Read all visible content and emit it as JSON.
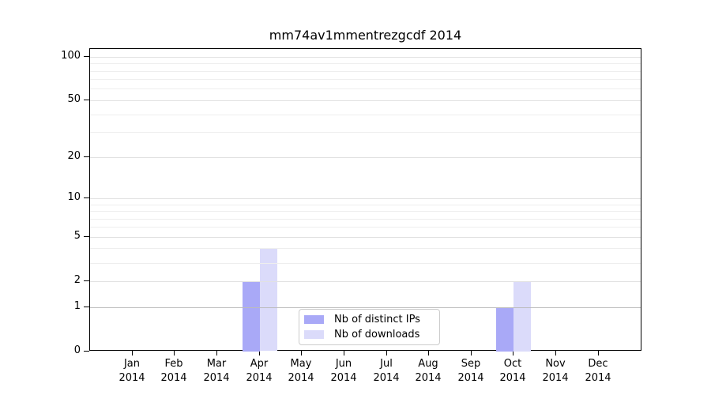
{
  "title": "mm74av1mmentrezgcdf 2014",
  "chart_data": {
    "type": "bar",
    "title": "mm74av1mmentrezgcdf 2014",
    "categories": [
      "Jan",
      "Feb",
      "Mar",
      "Apr",
      "May",
      "Jun",
      "Jul",
      "Aug",
      "Sep",
      "Oct",
      "Nov",
      "Dec"
    ],
    "category_sublabel": "2014",
    "series": [
      {
        "name": "Nb of distinct IPs",
        "color": "#a9a9f7",
        "values": [
          0,
          0,
          0,
          2,
          0,
          0,
          0,
          0,
          0,
          1,
          0,
          0
        ]
      },
      {
        "name": "Nb of downloads",
        "color": "#dbdbfa",
        "values": [
          0,
          0,
          0,
          4,
          0,
          0,
          0,
          0,
          0,
          2,
          0,
          0
        ]
      }
    ],
    "y_axis": {
      "scale": "log1p",
      "tick_values": [
        0,
        1,
        2,
        5,
        10,
        20,
        50,
        100
      ],
      "minor_gridline_values": [
        3,
        4,
        6,
        7,
        8,
        9,
        30,
        40,
        60,
        70,
        80,
        90
      ],
      "ylim": [
        0,
        112
      ]
    },
    "x_axis": {
      "year_row": "2014"
    },
    "legend_position": "bottom-center-inside",
    "grid": true
  },
  "colors": {
    "bar_distinct_ips": "#a9a9f7",
    "bar_downloads": "#dbdbfa",
    "grid_minor": "#eeeeee",
    "grid_major": "#e1e1e1",
    "grid_value_one": "#bcbcbc",
    "axis": "#000000",
    "legend_border": "#cccccc"
  }
}
